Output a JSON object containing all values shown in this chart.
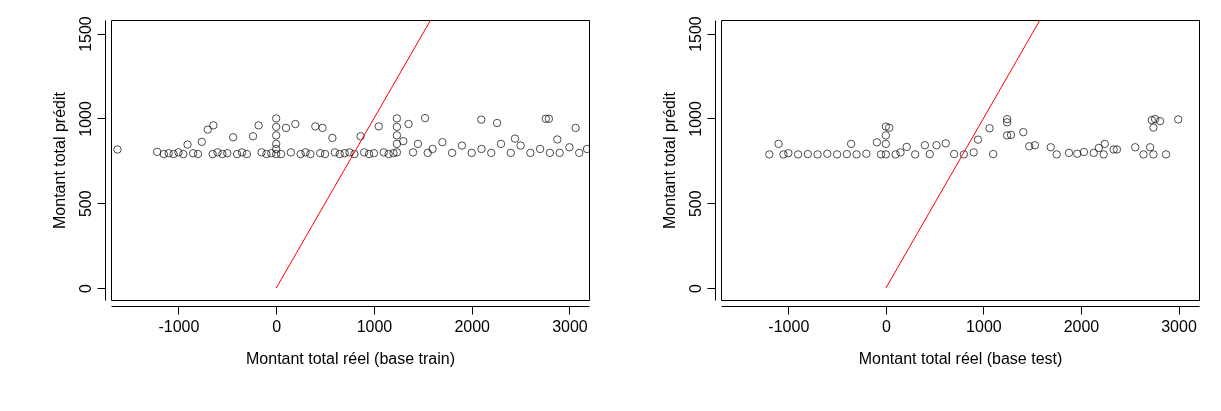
{
  "chart_data": [
    {
      "type": "scatter",
      "xlabel": "Montant total réel (base train)",
      "ylabel": "Montant total prédit",
      "xlim": [
        -1690,
        3200
      ],
      "ylim": [
        -70,
        1580
      ],
      "xticks": [
        -1000,
        0,
        1000,
        2000,
        3000
      ],
      "yticks": [
        0,
        500,
        1000,
        1500
      ],
      "grid": false,
      "series": [
        {
          "marker": "circle",
          "color": "#000000",
          "x": [
            -1624,
            -1218,
            -1150,
            -1100,
            -1050,
            -1000,
            -950,
            -907,
            -850,
            -800,
            -761,
            -700,
            -650,
            -643,
            -600,
            -550,
            -500,
            -440,
            -400,
            -350,
            -300,
            -237,
            -180,
            -150,
            -100,
            -50,
            0,
            0,
            0,
            0,
            0,
            0,
            50,
            100,
            150,
            196,
            250,
            300,
            350,
            400,
            450,
            474,
            500,
            575,
            600,
            650,
            700,
            750,
            800,
            863,
            900,
            950,
            1000,
            1049,
            1100,
            1150,
            1200,
            1235,
            1235,
            1235,
            1235,
            1235,
            1300,
            1354,
            1400,
            1450,
            1523,
            1550,
            1600,
            1700,
            1800,
            1900,
            2000,
            2098,
            2100,
            2200,
            2260,
            2300,
            2400,
            2443,
            2500,
            2600,
            2700,
            2758,
            2790,
            2800,
            2876,
            2900,
            3000,
            3063,
            3100,
            3180
          ],
          "values": [
            817,
            803,
            790,
            795,
            790,
            800,
            790,
            846,
            795,
            790,
            862,
            934,
            790,
            959,
            800,
            790,
            795,
            889,
            790,
            800,
            790,
            895,
            959,
            800,
            790,
            795,
            790,
            850,
            900,
            950,
            1000,
            820,
            790,
            944,
            800,
            967,
            790,
            800,
            790,
            953,
            795,
            944,
            790,
            885,
            800,
            790,
            795,
            800,
            790,
            895,
            800,
            790,
            795,
            953,
            800,
            790,
            795,
            850,
            900,
            950,
            1000,
            800,
            866,
            967,
            800,
            850,
            1002,
            797,
            820,
            860,
            797,
            840,
            797,
            993,
            820,
            797,
            973,
            850,
            797,
            881,
            840,
            797,
            820,
            998,
            998,
            797,
            876,
            797,
            830,
            944,
            797,
            820
          ]
        },
        {
          "type": "line",
          "color": "#ff0000",
          "x": [
            0,
            1580
          ],
          "values": [
            0,
            1580
          ]
        }
      ]
    },
    {
      "type": "scatter",
      "xlabel": "Montant total réel (base test)",
      "ylabel": "Montant total prédit",
      "xlim": [
        -1690,
        3210
      ],
      "ylim": [
        -70,
        1580
      ],
      "xticks": [
        -1000,
        0,
        1000,
        2000,
        3000
      ],
      "yticks": [
        0,
        500,
        1000,
        1500
      ],
      "grid": false,
      "series": [
        {
          "marker": "circle",
          "color": "#000000",
          "x": [
            -1195,
            -1100,
            -1050,
            -1000,
            -900,
            -800,
            -700,
            -600,
            -500,
            -400,
            -356,
            -300,
            -200,
            -92,
            -50,
            0,
            0,
            0,
            0,
            34,
            100,
            150,
            214,
            300,
            400,
            450,
            519,
            614,
            700,
            800,
            900,
            944,
            1063,
            1100,
            1243,
            1243,
            1243,
            1283,
            1409,
            1470,
            1528,
            1690,
            1751,
            1877,
            1962,
            2030,
            2131,
            2183,
            2233,
            2244,
            2335,
            2369,
            2556,
            2641,
            2709,
            2726,
            2743,
            2743,
            2760,
            2811,
            2872,
            2997
          ],
          "values": [
            788,
            850,
            788,
            795,
            788,
            790,
            788,
            792,
            788,
            790,
            850,
            788,
            792,
            859,
            788,
            788,
            850,
            900,
            952,
            945,
            788,
            800,
            832,
            788,
            842,
            790,
            842,
            853,
            790,
            788,
            800,
            875,
            942,
            790,
            900,
            977,
            996,
            903,
            919,
            836,
            842,
            830,
            788,
            797,
            792,
            802,
            797,
            826,
            788,
            850,
            817,
            817,
            830,
            788,
            830,
            990,
            788,
            946,
            996,
            984,
            788,
            994
          ]
        },
        {
          "type": "line",
          "color": "#ff0000",
          "x": [
            0,
            1580
          ],
          "values": [
            0,
            1580
          ]
        }
      ]
    }
  ]
}
